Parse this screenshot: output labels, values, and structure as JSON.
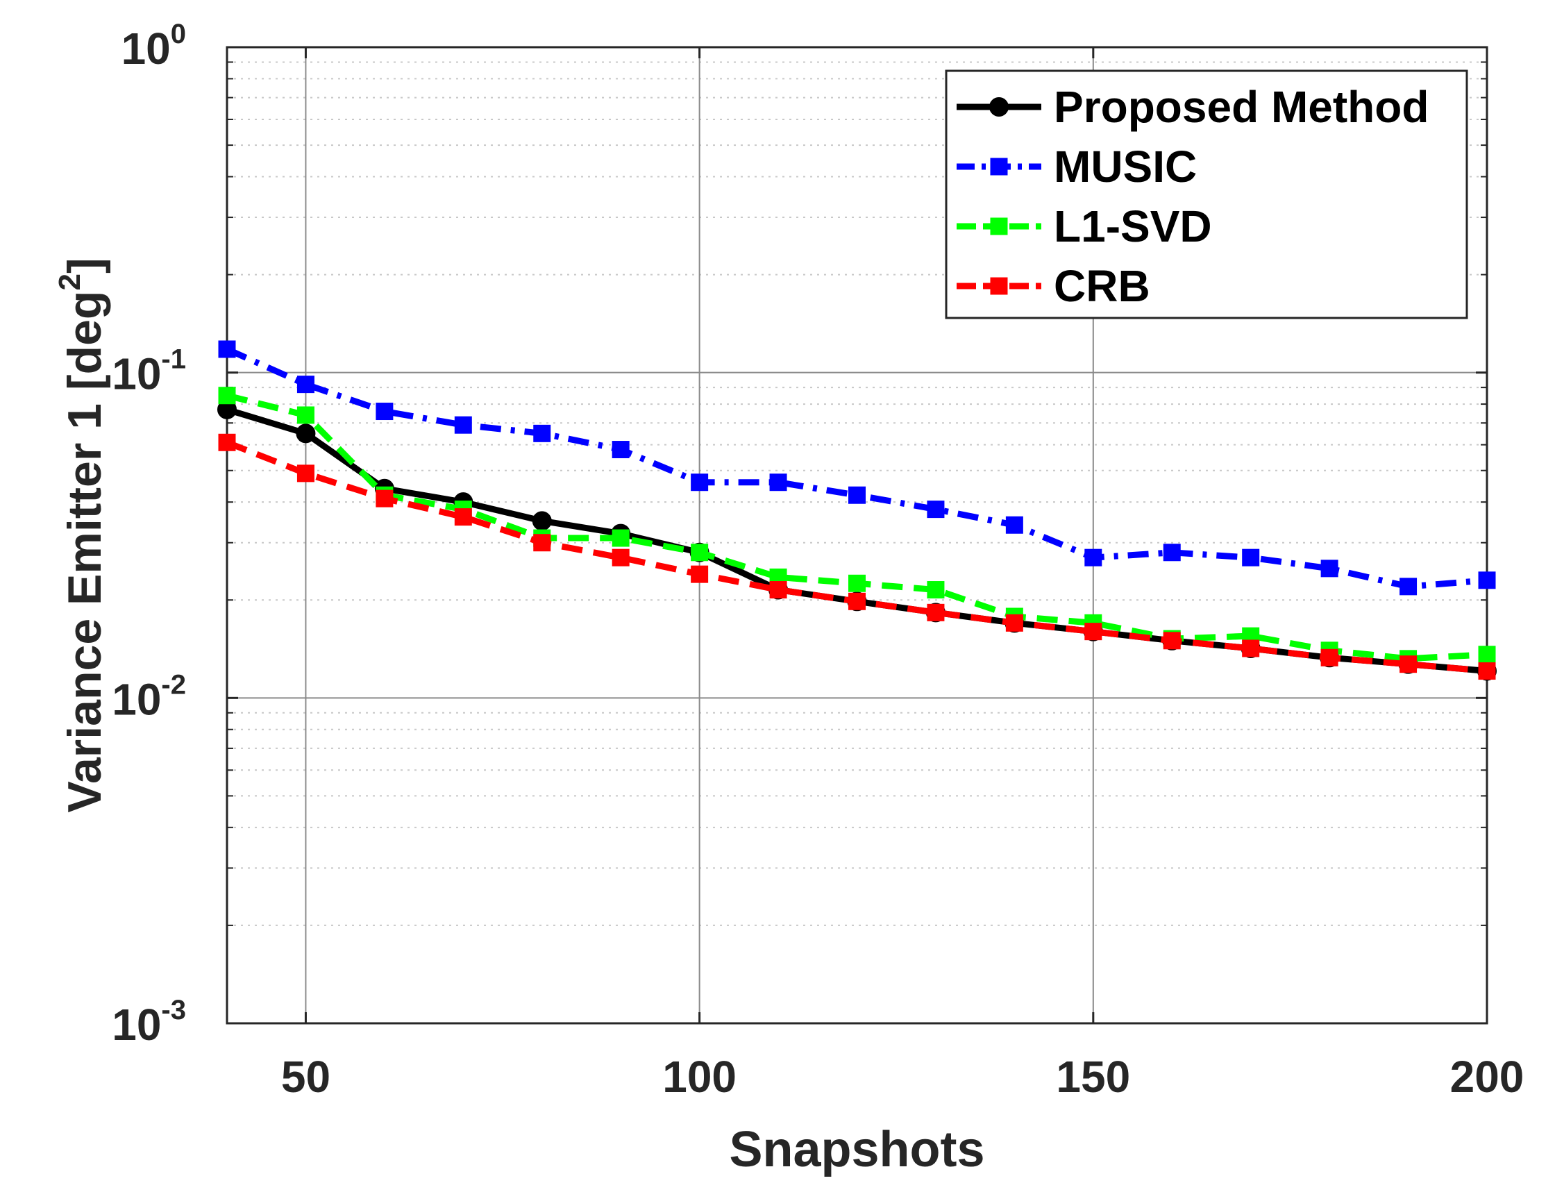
{
  "chart_data": {
    "type": "line",
    "title": "",
    "xlabel": "Snapshots",
    "ylabel": "Variance Emitter 1 [deg",
    "ylabel_sup": "2",
    "ylabel_close": "]",
    "xlim": [
      40,
      200
    ],
    "ylim": [
      0.001,
      1
    ],
    "yscale": "log",
    "grid": true,
    "x_ticks": [
      50,
      100,
      150,
      200
    ],
    "x_tick_labels": [
      "50",
      "100",
      "150",
      "200"
    ],
    "y_ticks": [
      0.001,
      0.01,
      0.1,
      1
    ],
    "y_tick_labels": [
      {
        "base": "10",
        "exp": "-3"
      },
      {
        "base": "10",
        "exp": "-2"
      },
      {
        "base": "10",
        "exp": "-1"
      },
      {
        "base": "10",
        "exp": "0"
      }
    ],
    "x": [
      40,
      50,
      60,
      70,
      80,
      90,
      100,
      110,
      120,
      130,
      140,
      150,
      160,
      170,
      180,
      190,
      200
    ],
    "series": [
      {
        "name": "Proposed Method",
        "color": "#000000",
        "dash": "solid",
        "marker": "circle",
        "values": [
          0.077,
          0.065,
          0.044,
          0.04,
          0.035,
          0.032,
          0.028,
          0.0215,
          0.0198,
          0.0183,
          0.017,
          0.016,
          0.015,
          0.0142,
          0.0133,
          0.0127,
          0.0121
        ]
      },
      {
        "name": "MUSIC",
        "color": "#0000ff",
        "dash": "dashdot",
        "marker": "square",
        "values": [
          0.118,
          0.092,
          0.076,
          0.069,
          0.065,
          0.058,
          0.046,
          0.046,
          0.042,
          0.038,
          0.034,
          0.027,
          0.028,
          0.027,
          0.025,
          0.022,
          0.023
        ]
      },
      {
        "name": "L1-SVD",
        "color": "#00ff00",
        "dash": "dashed",
        "marker": "square",
        "values": [
          0.085,
          0.074,
          0.042,
          0.038,
          0.031,
          0.031,
          0.028,
          0.0235,
          0.0225,
          0.0215,
          0.0178,
          0.017,
          0.0152,
          0.0155,
          0.014,
          0.0132,
          0.0136
        ]
      },
      {
        "name": "CRB",
        "color": "#ff0000",
        "dash": "dashed",
        "marker": "square",
        "values": [
          0.061,
          0.049,
          0.041,
          0.036,
          0.03,
          0.027,
          0.024,
          0.0215,
          0.0198,
          0.0183,
          0.017,
          0.016,
          0.015,
          0.0142,
          0.0133,
          0.0127,
          0.0121
        ]
      }
    ],
    "legend": {
      "position": "top-right",
      "entries": [
        "Proposed Method",
        "MUSIC",
        "L1-SVD",
        "CRB"
      ]
    }
  }
}
